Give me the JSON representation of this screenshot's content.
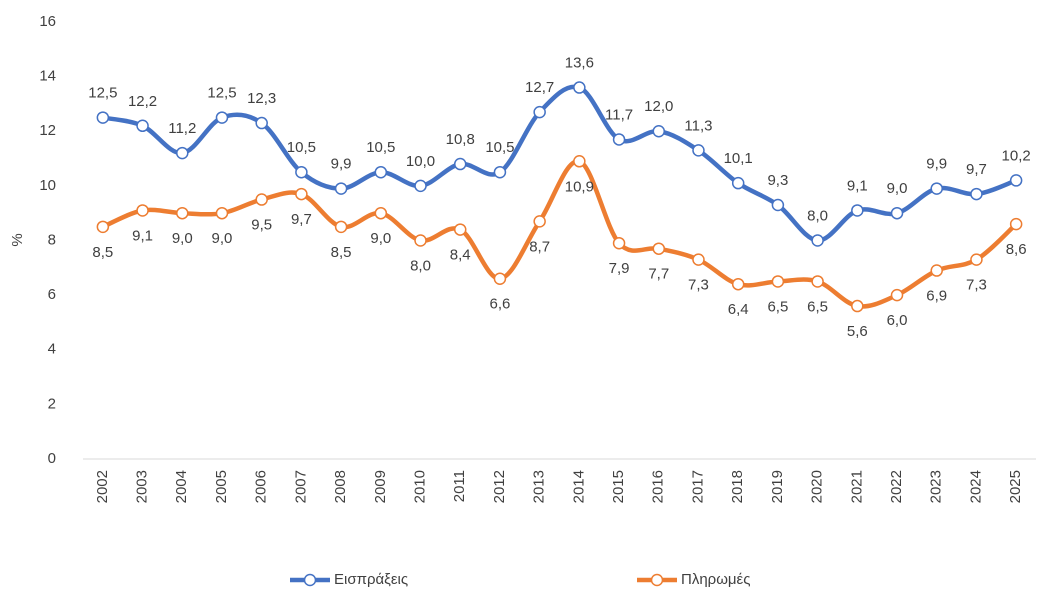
{
  "chart_data": {
    "type": "line",
    "y_label": "%",
    "categories": [
      "2002",
      "2003",
      "2004",
      "2005",
      "2006",
      "2007",
      "2008",
      "2009",
      "2010",
      "2011",
      "2012",
      "2013",
      "2014",
      "2015",
      "2016",
      "2017",
      "2018",
      "2019",
      "2020",
      "2021",
      "2022",
      "2023",
      "2024",
      "2025"
    ],
    "series": [
      {
        "name": "Εισπράξεις",
        "color": "#4472c4",
        "values": [
          12.5,
          12.2,
          11.2,
          12.5,
          12.3,
          10.5,
          9.9,
          10.5,
          10.0,
          10.8,
          10.5,
          12.7,
          13.6,
          11.7,
          12.0,
          11.3,
          10.1,
          9.3,
          8.0,
          9.1,
          9.0,
          9.9,
          9.7,
          10.2
        ],
        "value_labels": [
          "12,5",
          "12,2",
          "11,2",
          "12,5",
          "12,3",
          "10,5",
          "9,9",
          "10,5",
          "10,0",
          "10,8",
          "10,5",
          "12,7",
          "13,6",
          "11,7",
          "12,0",
          "11,3",
          "10,1",
          "9,3",
          "8,0",
          "9,1",
          "9,0",
          "9,9",
          "9,7",
          "10,2"
        ]
      },
      {
        "name": "Πληρωμές",
        "color": "#ed7d31",
        "values": [
          8.5,
          9.1,
          9.0,
          9.0,
          9.5,
          9.7,
          8.5,
          9.0,
          8.0,
          8.4,
          6.6,
          8.7,
          10.9,
          7.9,
          7.7,
          7.3,
          6.4,
          6.5,
          6.5,
          5.6,
          6.0,
          6.9,
          7.3,
          8.6
        ],
        "value_labels": [
          "8,5",
          "9,1",
          "9,0",
          "9,0",
          "9,5",
          "9,7",
          "8,5",
          "9,0",
          "8,0",
          "8,4",
          "6,6",
          "8,7",
          "10,9",
          "7,9",
          "7,7",
          "7,3",
          "6,4",
          "6,5",
          "6,5",
          "5,6",
          "6,0",
          "6,9",
          "7,3",
          "8,6"
        ]
      }
    ],
    "ylim": [
      0,
      16
    ],
    "yticks": [
      0,
      2,
      4,
      6,
      8,
      10,
      12,
      14,
      16
    ],
    "grid": false,
    "legend": "bottom"
  }
}
